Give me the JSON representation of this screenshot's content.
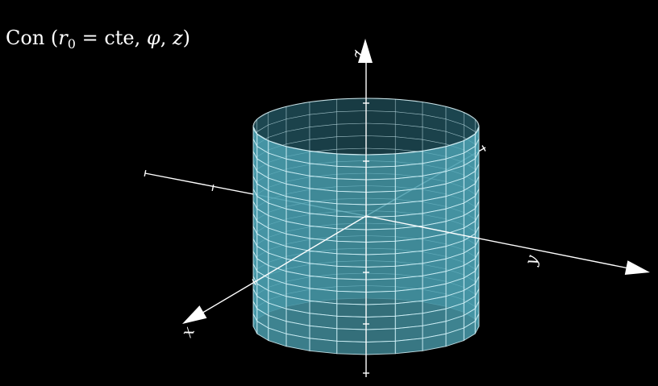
{
  "caption": {
    "prefix": "Con",
    "open_paren": "(",
    "var_r": "r",
    "sub_0": "0",
    "equals_cte": "= cte,",
    "var_phi": "φ",
    "comma": ",",
    "var_z": "z",
    "close_paren": ")"
  },
  "axes": {
    "x_label": "x",
    "y_label": "y",
    "z_label": "z"
  },
  "colors": {
    "background": "#000000",
    "axis": "#ffffff",
    "surface_fill": "#4fa7b8",
    "surface_dark": "#2e7282",
    "grid_line": "#d8f4fa"
  },
  "surface": {
    "type": "cylinder",
    "angular_divisions": 24,
    "height_divisions": 16
  }
}
